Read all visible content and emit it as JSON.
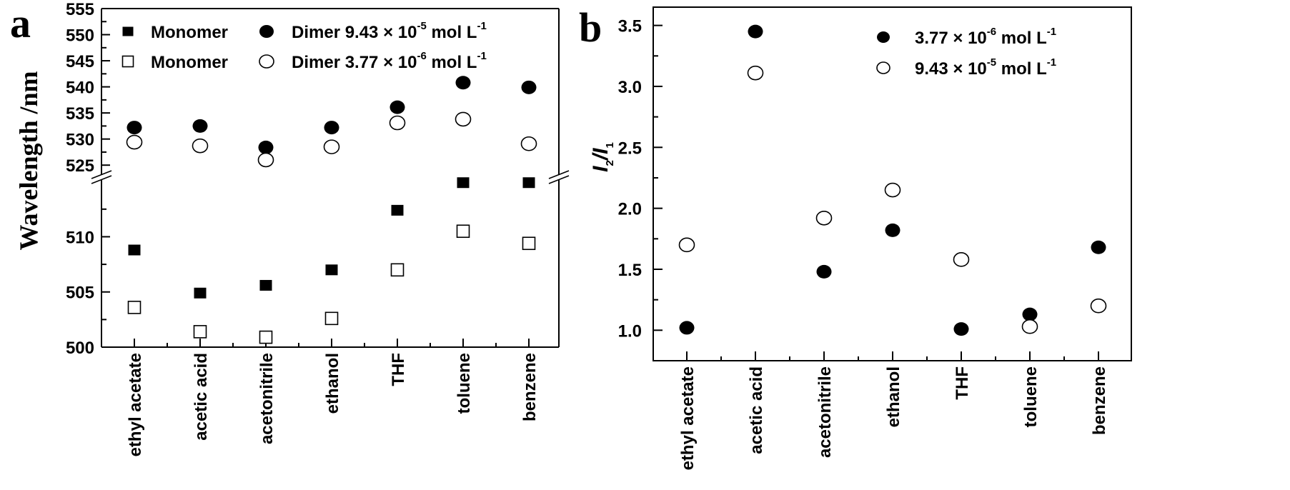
{
  "chart_data": [
    {
      "type": "scatter",
      "panel_label": "a",
      "title": "",
      "xlabel": "",
      "ylabel": "Wavelength /nm",
      "categories": [
        "ethyl acetate",
        "acetic acid",
        "acetonitrile",
        "ethanol",
        "THF",
        "toluene",
        "benzene"
      ],
      "y_axis_break": {
        "lower_range": [
          500,
          515.4
        ],
        "upper_range": [
          522.7,
          555
        ]
      },
      "yticks_lower": [
        500,
        505,
        510
      ],
      "yticks_upper": [
        525,
        530,
        535,
        540,
        545,
        550,
        555
      ],
      "ytick_labels_lower": [
        "500",
        "505",
        "510"
      ],
      "ytick_labels_upper": [
        "525",
        "530",
        "535",
        "540",
        "545",
        "550",
        "555"
      ],
      "grid": false,
      "legend_position": "top",
      "series": [
        {
          "name": "Monomer",
          "legend_label": "Monomer",
          "marker": "filled-square",
          "values": [
            508.8,
            504.9,
            505.6,
            507.0,
            512.4,
            514.9,
            514.9
          ]
        },
        {
          "name": "Dimer 9.43 × 10-5 mol L-1",
          "legend_label": "Dimer 9.43 ×  10",
          "legend_exp": "-5",
          "legend_unit": " mol L",
          "legend_unit_exp": "-1",
          "marker": "filled-circle",
          "values": [
            532.2,
            532.5,
            528.4,
            532.2,
            536.1,
            540.8,
            539.9
          ]
        },
        {
          "name": "Monomer",
          "legend_label": "Monomer",
          "marker": "open-square",
          "values": [
            503.6,
            501.4,
            500.9,
            502.6,
            507.0,
            510.5,
            509.4
          ]
        },
        {
          "name": "Dimer 3.77 × 10-6 mol L-1",
          "legend_label": "Dimer 3.77 ×  10",
          "legend_exp": "-6",
          "legend_unit": " mol L",
          "legend_unit_exp": "-1",
          "marker": "open-circle",
          "values": [
            529.4,
            528.7,
            526.0,
            528.5,
            533.1,
            533.8,
            529.1
          ]
        }
      ]
    },
    {
      "type": "scatter",
      "panel_label": "b",
      "title": "",
      "xlabel": "",
      "ylabel_main": "I",
      "ylabel_sub1": "2",
      "ylabel_slash": "/",
      "ylabel_main2": "I",
      "ylabel_sub2": "1",
      "categories": [
        "ethyl acetate",
        "acetic acid",
        "acetonitrile",
        "ethanol",
        "THF",
        "toluene",
        "benzene"
      ],
      "ylim": [
        0.75,
        3.65
      ],
      "yticks": [
        1.0,
        1.5,
        2.0,
        2.5,
        3.0,
        3.5
      ],
      "ytick_labels": [
        "1.0",
        "1.5",
        "2.0",
        "2.5",
        "3.0",
        "3.5"
      ],
      "grid": false,
      "legend_position": "top-right",
      "series": [
        {
          "name": "3.77 × 10-6 mol L-1",
          "legend_label": "3.77 ×  10",
          "legend_exp": "-6",
          "legend_unit": " mol L",
          "legend_unit_exp": "-1",
          "marker": "filled-circle",
          "values": [
            1.02,
            3.45,
            1.48,
            1.82,
            1.01,
            1.13,
            1.68
          ]
        },
        {
          "name": "9.43 × 10-5 mol L-1",
          "legend_label": "9.43 ×  10",
          "legend_exp": "-5",
          "legend_unit": " mol L",
          "legend_unit_exp": "-1",
          "marker": "open-circle",
          "values": [
            1.7,
            3.11,
            1.92,
            2.15,
            1.58,
            1.03,
            1.2
          ]
        }
      ]
    }
  ]
}
